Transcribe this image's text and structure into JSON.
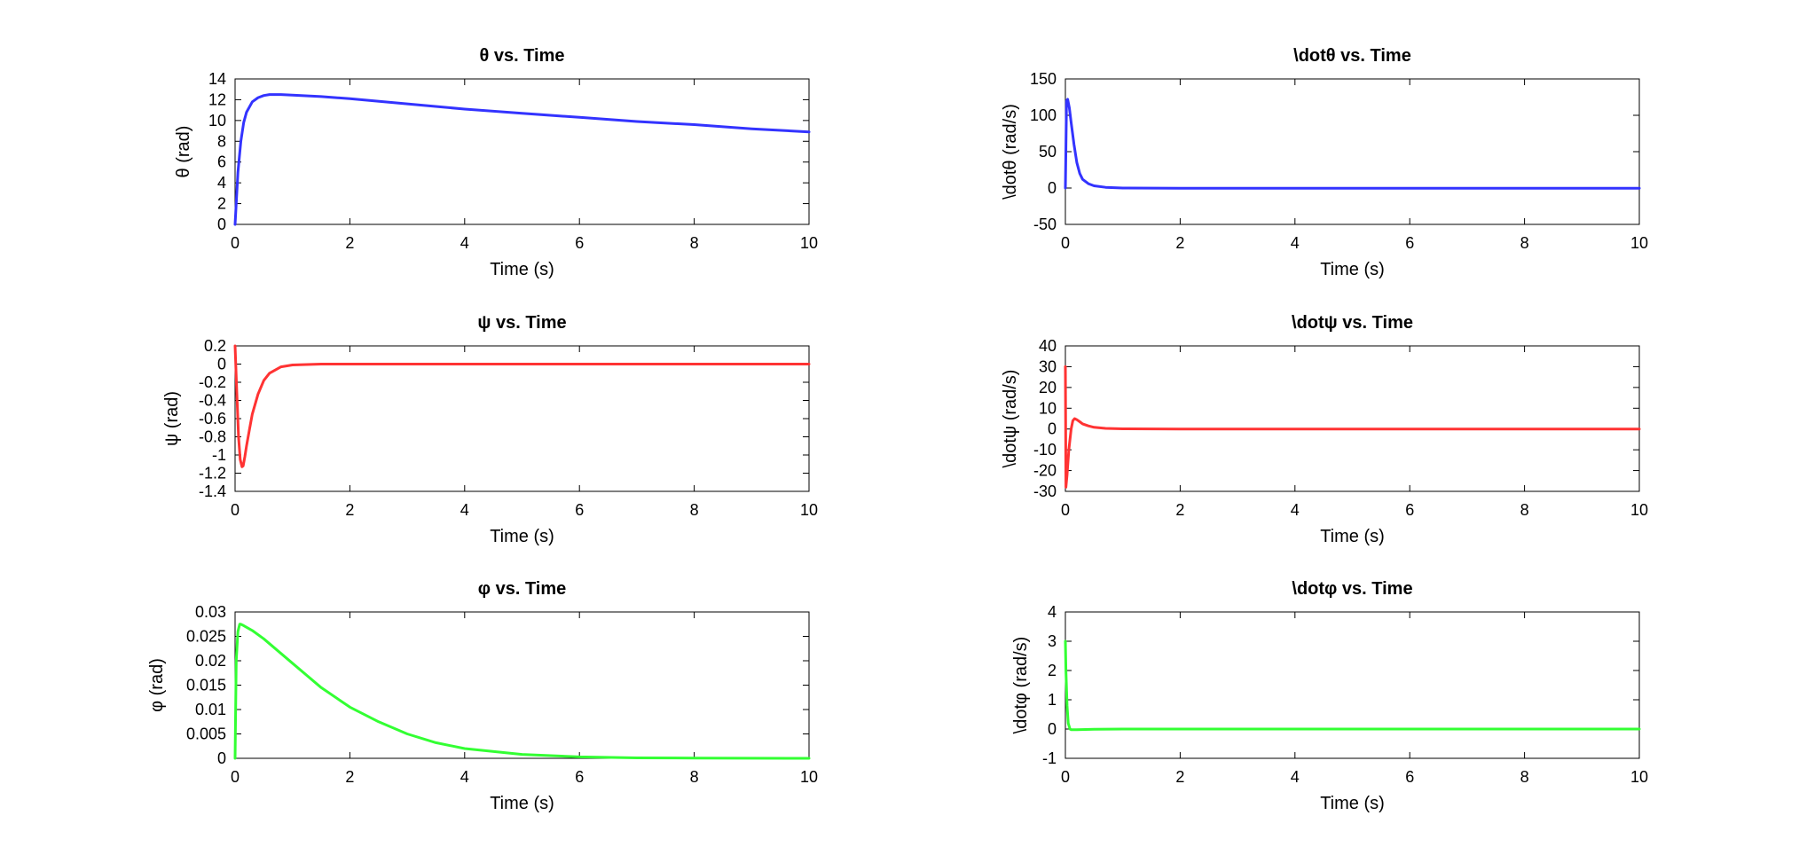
{
  "colors": {
    "blue": "#3333ff",
    "red": "#ff3333",
    "green": "#33ff33"
  },
  "chart_data": [
    {
      "type": "line",
      "title": "θ vs. Time",
      "xlabel": "Time (s)",
      "ylabel": "θ (rad)",
      "xlim": [
        0,
        10
      ],
      "ylim": [
        0,
        14
      ],
      "xticks": [
        "0",
        "2",
        "4",
        "6",
        "8",
        "10"
      ],
      "yticks": [
        "0",
        "2",
        "4",
        "6",
        "8",
        "10",
        "12",
        "14"
      ],
      "grid": false,
      "series": [
        {
          "color": "#3333ff",
          "x": [
            0,
            0.05,
            0.1,
            0.15,
            0.2,
            0.3,
            0.4,
            0.5,
            0.6,
            0.7,
            0.8,
            1,
            1.5,
            2,
            3,
            4,
            5,
            6,
            7,
            8,
            9,
            10
          ],
          "y": [
            0,
            5,
            8,
            9.8,
            10.8,
            11.8,
            12.2,
            12.4,
            12.5,
            12.5,
            12.5,
            12.45,
            12.3,
            12.1,
            11.6,
            11.1,
            10.7,
            10.3,
            9.9,
            9.6,
            9.2,
            8.9
          ]
        }
      ]
    },
    {
      "type": "line",
      "title": "\\dotθ vs. Time",
      "xlabel": "Time (s)",
      "ylabel": "\\dotθ (rad/s)",
      "xlim": [
        0,
        10
      ],
      "ylim": [
        -50,
        150
      ],
      "xticks": [
        "0",
        "2",
        "4",
        "6",
        "8",
        "10"
      ],
      "yticks": [
        "-50",
        "0",
        "50",
        "100",
        "150"
      ],
      "grid": false,
      "series": [
        {
          "color": "#3333ff",
          "x": [
            0,
            0.02,
            0.04,
            0.07,
            0.1,
            0.15,
            0.2,
            0.25,
            0.3,
            0.4,
            0.5,
            0.7,
            1,
            2,
            4,
            6,
            8,
            10
          ],
          "y": [
            0,
            120,
            122,
            110,
            90,
            60,
            35,
            20,
            12,
            6,
            3,
            1,
            0,
            -0.2,
            -0.3,
            -0.3,
            -0.3,
            -0.3
          ]
        }
      ]
    },
    {
      "type": "line",
      "title": "ψ vs. Time",
      "xlabel": "Time (s)",
      "ylabel": "ψ (rad)",
      "xlim": [
        0,
        10
      ],
      "ylim": [
        -1.4,
        0.2
      ],
      "xticks": [
        "0",
        "2",
        "4",
        "6",
        "8",
        "10"
      ],
      "yticks": [
        "-1.4",
        "-1.2",
        "-1",
        "-0.8",
        "-0.6",
        "-0.4",
        "-0.2",
        "0",
        "0.2"
      ],
      "grid": false,
      "series": [
        {
          "color": "#ff3333",
          "x": [
            0,
            0.03,
            0.06,
            0.09,
            0.12,
            0.14,
            0.17,
            0.2,
            0.25,
            0.3,
            0.4,
            0.5,
            0.6,
            0.8,
            1,
            1.5,
            2,
            4,
            6,
            8,
            10
          ],
          "y": [
            0.2,
            -0.3,
            -0.8,
            -1.05,
            -1.13,
            -1.12,
            -1.02,
            -0.9,
            -0.72,
            -0.55,
            -0.33,
            -0.18,
            -0.1,
            -0.03,
            -0.01,
            0,
            0,
            0,
            0,
            0,
            0
          ]
        }
      ]
    },
    {
      "type": "line",
      "title": "\\dotψ vs. Time",
      "xlabel": "Time (s)",
      "ylabel": "\\dotψ (rad/s)",
      "xlim": [
        0,
        10
      ],
      "ylim": [
        -30,
        40
      ],
      "xticks": [
        "0",
        "2",
        "4",
        "6",
        "8",
        "10"
      ],
      "yticks": [
        "-30",
        "-20",
        "-10",
        "0",
        "10",
        "20",
        "30",
        "40"
      ],
      "grid": false,
      "series": [
        {
          "color": "#ff3333",
          "x": [
            0,
            0.01,
            0.03,
            0.06,
            0.1,
            0.13,
            0.16,
            0.2,
            0.25,
            0.3,
            0.4,
            0.5,
            0.7,
            1,
            2,
            4,
            6,
            8,
            10
          ],
          "y": [
            30,
            -28,
            -22,
            -10,
            0,
            4,
            5,
            4.5,
            3.5,
            2.5,
            1.5,
            0.8,
            0.3,
            0.1,
            0,
            0,
            0,
            0,
            0
          ]
        }
      ]
    },
    {
      "type": "line",
      "title": "φ vs. Time",
      "xlabel": "Time (s)",
      "ylabel": "φ (rad)",
      "xlim": [
        0,
        10
      ],
      "ylim": [
        0,
        0.03
      ],
      "xticks": [
        "0",
        "2",
        "4",
        "6",
        "8",
        "10"
      ],
      "yticks": [
        "0",
        "0.005",
        "0.01",
        "0.015",
        "0.02",
        "0.025",
        "0.03"
      ],
      "grid": false,
      "series": [
        {
          "color": "#33ff33",
          "x": [
            0,
            0.02,
            0.05,
            0.08,
            0.1,
            0.15,
            0.3,
            0.5,
            1,
            1.5,
            2,
            2.5,
            3,
            3.5,
            4,
            5,
            6,
            7,
            8,
            10
          ],
          "y": [
            0,
            0.02,
            0.026,
            0.0275,
            0.0275,
            0.0272,
            0.0262,
            0.0245,
            0.0195,
            0.0145,
            0.0105,
            0.0075,
            0.005,
            0.0032,
            0.002,
            0.0008,
            0.0003,
            0.0001,
            5e-05,
            0
          ]
        }
      ]
    },
    {
      "type": "line",
      "title": "\\dotφ vs. Time",
      "xlabel": "Time (s)",
      "ylabel": "\\dotφ (rad/s)",
      "xlim": [
        0,
        10
      ],
      "ylim": [
        -1,
        4
      ],
      "xticks": [
        "0",
        "2",
        "4",
        "6",
        "8",
        "10"
      ],
      "yticks": [
        "-1",
        "0",
        "1",
        "2",
        "3",
        "4"
      ],
      "grid": false,
      "series": [
        {
          "color": "#33ff33",
          "x": [
            0,
            0.01,
            0.03,
            0.05,
            0.08,
            0.1,
            0.2,
            0.5,
            1,
            2,
            4,
            6,
            8,
            10
          ],
          "y": [
            3,
            2,
            0.8,
            0.2,
            0,
            -0.02,
            -0.02,
            -0.01,
            0,
            0,
            0,
            0,
            0,
            0
          ]
        }
      ]
    }
  ]
}
